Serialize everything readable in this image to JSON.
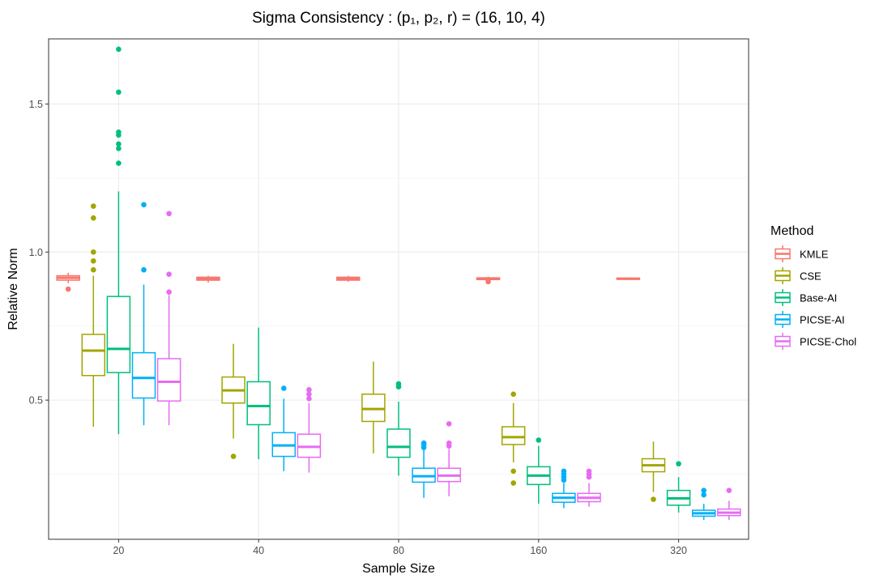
{
  "chart_data": {
    "type": "box",
    "title": "Sigma Consistency : (p₁, p₂, r) = (16, 10, 4)",
    "xlabel": "Sample Size",
    "ylabel": "Relative Norm",
    "categories": [
      "20",
      "40",
      "80",
      "160",
      "320"
    ],
    "y_ticks": [
      "0.5",
      "1.0",
      "1.5"
    ],
    "y_tick_values": [
      0.5,
      1.0,
      1.5
    ],
    "ylim": [
      0.03,
      1.72
    ],
    "grid": true,
    "legend": {
      "title": "Method",
      "position": "right"
    },
    "series": [
      {
        "name": "KMLE",
        "color": "#F8766D",
        "boxes": [
          {
            "lower": 0.895,
            "q1": 0.905,
            "median": 0.913,
            "q3": 0.92,
            "upper": 0.93,
            "outliers": [
              0.875
            ]
          },
          {
            "lower": 0.897,
            "q1": 0.905,
            "median": 0.91,
            "q3": 0.915,
            "upper": 0.92,
            "outliers": []
          },
          {
            "lower": 0.9,
            "q1": 0.905,
            "median": 0.91,
            "q3": 0.915,
            "upper": 0.92,
            "outliers": []
          },
          {
            "lower": 0.903,
            "q1": 0.907,
            "median": 0.91,
            "q3": 0.913,
            "upper": 0.917,
            "outliers": [
              0.9
            ]
          },
          {
            "lower": 0.906,
            "q1": 0.908,
            "median": 0.91,
            "q3": 0.912,
            "upper": 0.914,
            "outliers": []
          }
        ]
      },
      {
        "name": "CSE",
        "color": "#A3A500",
        "boxes": [
          {
            "lower": 0.41,
            "q1": 0.583,
            "median": 0.667,
            "q3": 0.722,
            "upper": 0.92,
            "outliers": [
              0.94,
              0.97,
              1.0,
              1.115,
              1.155
            ]
          },
          {
            "lower": 0.37,
            "q1": 0.49,
            "median": 0.533,
            "q3": 0.578,
            "upper": 0.69,
            "outliers": [
              0.31
            ]
          },
          {
            "lower": 0.32,
            "q1": 0.428,
            "median": 0.47,
            "q3": 0.52,
            "upper": 0.63,
            "outliers": []
          },
          {
            "lower": 0.29,
            "q1": 0.35,
            "median": 0.375,
            "q3": 0.41,
            "upper": 0.49,
            "outliers": [
              0.52,
              0.26,
              0.22
            ]
          },
          {
            "lower": 0.19,
            "q1": 0.258,
            "median": 0.28,
            "q3": 0.302,
            "upper": 0.36,
            "outliers": [
              0.165
            ]
          }
        ]
      },
      {
        "name": "Base-AI",
        "color": "#00BF7D",
        "boxes": [
          {
            "lower": 0.385,
            "q1": 0.593,
            "median": 0.673,
            "q3": 0.85,
            "upper": 1.205,
            "outliers": [
              1.3,
              1.35,
              1.365,
              1.395,
              1.405,
              1.54,
              1.685
            ]
          },
          {
            "lower": 0.3,
            "q1": 0.417,
            "median": 0.48,
            "q3": 0.562,
            "upper": 0.745,
            "outliers": []
          },
          {
            "lower": 0.245,
            "q1": 0.307,
            "median": 0.342,
            "q3": 0.402,
            "upper": 0.495,
            "outliers": [
              0.545,
              0.555
            ]
          },
          {
            "lower": 0.15,
            "q1": 0.215,
            "median": 0.245,
            "q3": 0.275,
            "upper": 0.345,
            "outliers": [
              0.365
            ]
          },
          {
            "lower": 0.12,
            "q1": 0.145,
            "median": 0.168,
            "q3": 0.195,
            "upper": 0.24,
            "outliers": [
              0.285
            ]
          }
        ]
      },
      {
        "name": "PICSE-AI",
        "color": "#00B0F6",
        "boxes": [
          {
            "lower": 0.415,
            "q1": 0.507,
            "median": 0.575,
            "q3": 0.66,
            "upper": 0.89,
            "outliers": [
              0.94,
              1.16
            ]
          },
          {
            "lower": 0.26,
            "q1": 0.31,
            "median": 0.347,
            "q3": 0.39,
            "upper": 0.505,
            "outliers": [
              0.54
            ]
          },
          {
            "lower": 0.17,
            "q1": 0.223,
            "median": 0.243,
            "q3": 0.27,
            "upper": 0.335,
            "outliers": [
              0.34,
              0.35,
              0.355
            ]
          },
          {
            "lower": 0.135,
            "q1": 0.155,
            "median": 0.17,
            "q3": 0.185,
            "upper": 0.22,
            "outliers": [
              0.23,
              0.24,
              0.25,
              0.26
            ]
          },
          {
            "lower": 0.095,
            "q1": 0.108,
            "median": 0.118,
            "q3": 0.128,
            "upper": 0.15,
            "outliers": [
              0.18,
              0.195
            ]
          }
        ]
      },
      {
        "name": "PICSE-Chol",
        "color": "#E76BF3",
        "boxes": [
          {
            "lower": 0.415,
            "q1": 0.497,
            "median": 0.562,
            "q3": 0.64,
            "upper": 0.855,
            "outliers": [
              0.865,
              0.925,
              1.13
            ]
          },
          {
            "lower": 0.255,
            "q1": 0.307,
            "median": 0.342,
            "q3": 0.385,
            "upper": 0.49,
            "outliers": [
              0.505,
              0.52,
              0.535
            ]
          },
          {
            "lower": 0.175,
            "q1": 0.225,
            "median": 0.245,
            "q3": 0.27,
            "upper": 0.335,
            "outliers": [
              0.345,
              0.355,
              0.42
            ]
          },
          {
            "lower": 0.14,
            "q1": 0.157,
            "median": 0.17,
            "q3": 0.185,
            "upper": 0.22,
            "outliers": [
              0.24,
              0.25,
              0.26
            ]
          },
          {
            "lower": 0.095,
            "q1": 0.11,
            "median": 0.12,
            "q3": 0.132,
            "upper": 0.16,
            "outliers": [
              0.195
            ]
          }
        ]
      }
    ]
  }
}
